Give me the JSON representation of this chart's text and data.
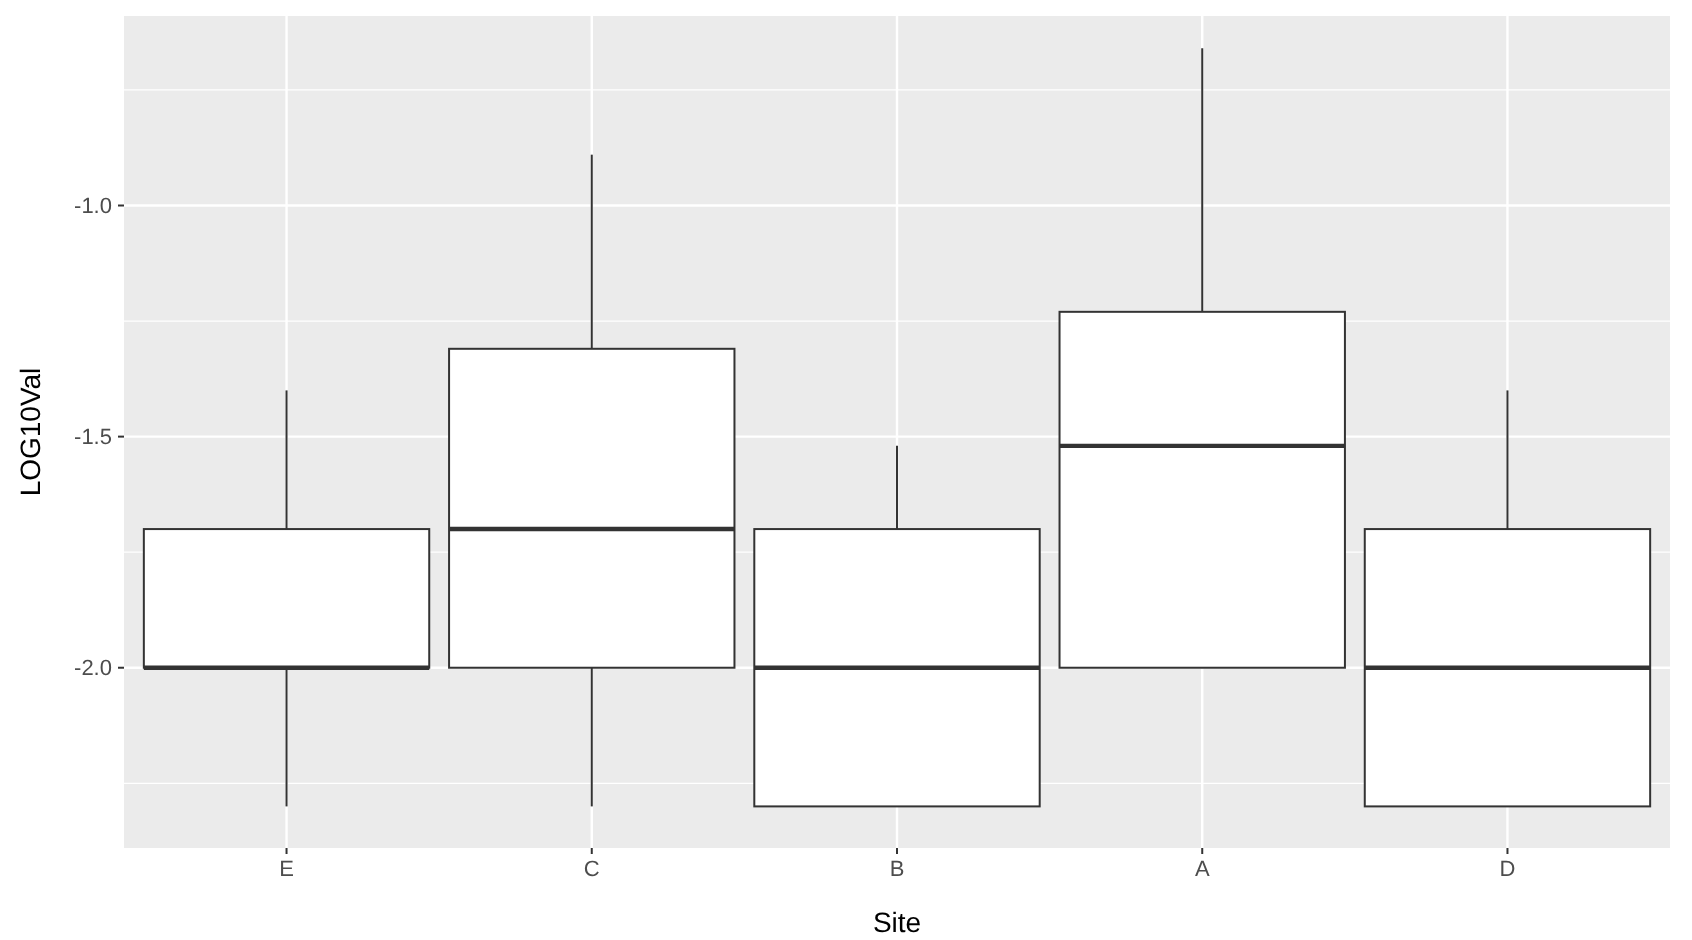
{
  "chart_data": {
    "type": "box",
    "xlabel": "Site",
    "ylabel": "LOG10Val",
    "categories": [
      "E",
      "C",
      "B",
      "A",
      "D"
    ],
    "boxes": [
      {
        "low": -2.3,
        "q1": -2.0,
        "median": -2.0,
        "q3": -1.7,
        "high": -1.4
      },
      {
        "low": -2.3,
        "q1": -2.0,
        "median": -1.7,
        "q3": -1.31,
        "high": -0.89
      },
      {
        "low": -2.3,
        "q1": -2.3,
        "median": -2.0,
        "q3": -1.7,
        "high": -1.52
      },
      {
        "low": -2.0,
        "q1": -2.0,
        "median": -1.52,
        "q3": -1.23,
        "high": -0.66
      },
      {
        "low": -2.3,
        "q1": -2.3,
        "median": -2.0,
        "q3": -1.7,
        "high": -1.4
      }
    ],
    "ylim": [
      -2.39,
      -0.59
    ],
    "yticks": [
      {
        "value": -2,
        "label": "-2.0"
      },
      {
        "value": -1.5,
        "label": "-1.5"
      },
      {
        "value": -1,
        "label": "-1.0"
      }
    ],
    "grid": true
  }
}
